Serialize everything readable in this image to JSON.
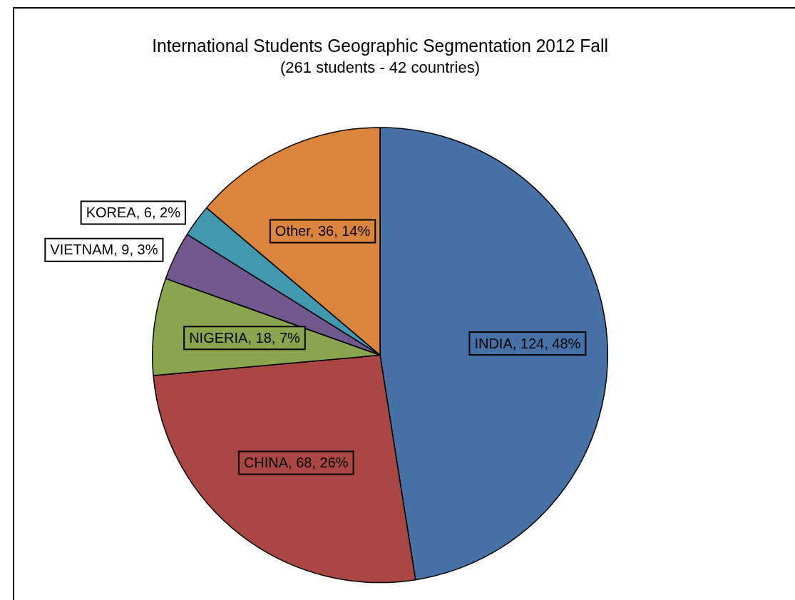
{
  "chart_data": {
    "type": "pie",
    "title": "International Students Geographic Segmentation 2012 Fall",
    "subtitle": "(261 students - 42 countries)",
    "categories": [
      "INDIA",
      "CHINA",
      "NIGERIA",
      "VIETNAM",
      "KOREA",
      "Other"
    ],
    "values": [
      124,
      68,
      18,
      9,
      6,
      36
    ],
    "colors": [
      "#4672a8",
      "#aa4643",
      "#89a54e",
      "#71588f",
      "#4198af",
      "#db843d"
    ],
    "value_labels": [
      "124, 48%",
      "68, 26%",
      "18, 7%",
      "9, 3%",
      "6, 2%",
      "36, 14%"
    ],
    "legend": false
  }
}
